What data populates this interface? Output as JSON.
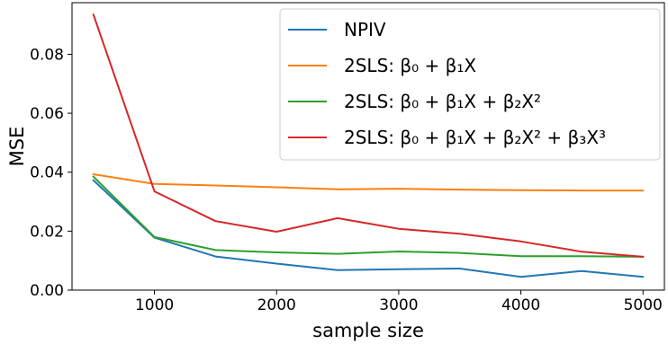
{
  "chart_data": {
    "type": "line",
    "title": "",
    "xlabel": "sample size",
    "ylabel": "MSE",
    "x": [
      500,
      1000,
      1500,
      2000,
      2500,
      3000,
      3500,
      4000,
      4500,
      5000
    ],
    "xlim": [
      325,
      5175
    ],
    "ylim": [
      0.0,
      0.0975
    ],
    "xticks": [
      1000,
      2000,
      3000,
      4000,
      5000
    ],
    "xtick_labels": [
      "1000",
      "2000",
      "3000",
      "4000",
      "5000"
    ],
    "yticks": [
      0.0,
      0.02,
      0.04,
      0.06,
      0.08
    ],
    "ytick_labels": [
      "0.00",
      "0.02",
      "0.04",
      "0.06",
      "0.08"
    ],
    "grid": false,
    "legend_position": "top-right",
    "series": [
      {
        "name": "NPIV",
        "color": "#1f77b4",
        "values": [
          0.0373,
          0.0178,
          0.0114,
          0.009,
          0.0068,
          0.0071,
          0.0073,
          0.0045,
          0.0065,
          0.0045
        ]
      },
      {
        "name": "2SLS: β₀ + β₁X",
        "color": "#ff7f0e",
        "values": [
          0.0393,
          0.036,
          0.0355,
          0.0349,
          0.0342,
          0.0344,
          0.0341,
          0.0339,
          0.0338,
          0.0338
        ]
      },
      {
        "name": "2SLS: β₀ + β₁X + β₂X²",
        "color": "#2ca02c",
        "values": [
          0.0385,
          0.018,
          0.0136,
          0.0128,
          0.0123,
          0.0131,
          0.0126,
          0.0115,
          0.0115,
          0.0113
        ]
      },
      {
        "name": "2SLS: β₀ + β₁X + β₂X² + β₃X³",
        "color": "#d62728",
        "values": [
          0.0935,
          0.0335,
          0.0234,
          0.0198,
          0.0244,
          0.0208,
          0.0191,
          0.0165,
          0.013,
          0.0113
        ]
      }
    ]
  }
}
